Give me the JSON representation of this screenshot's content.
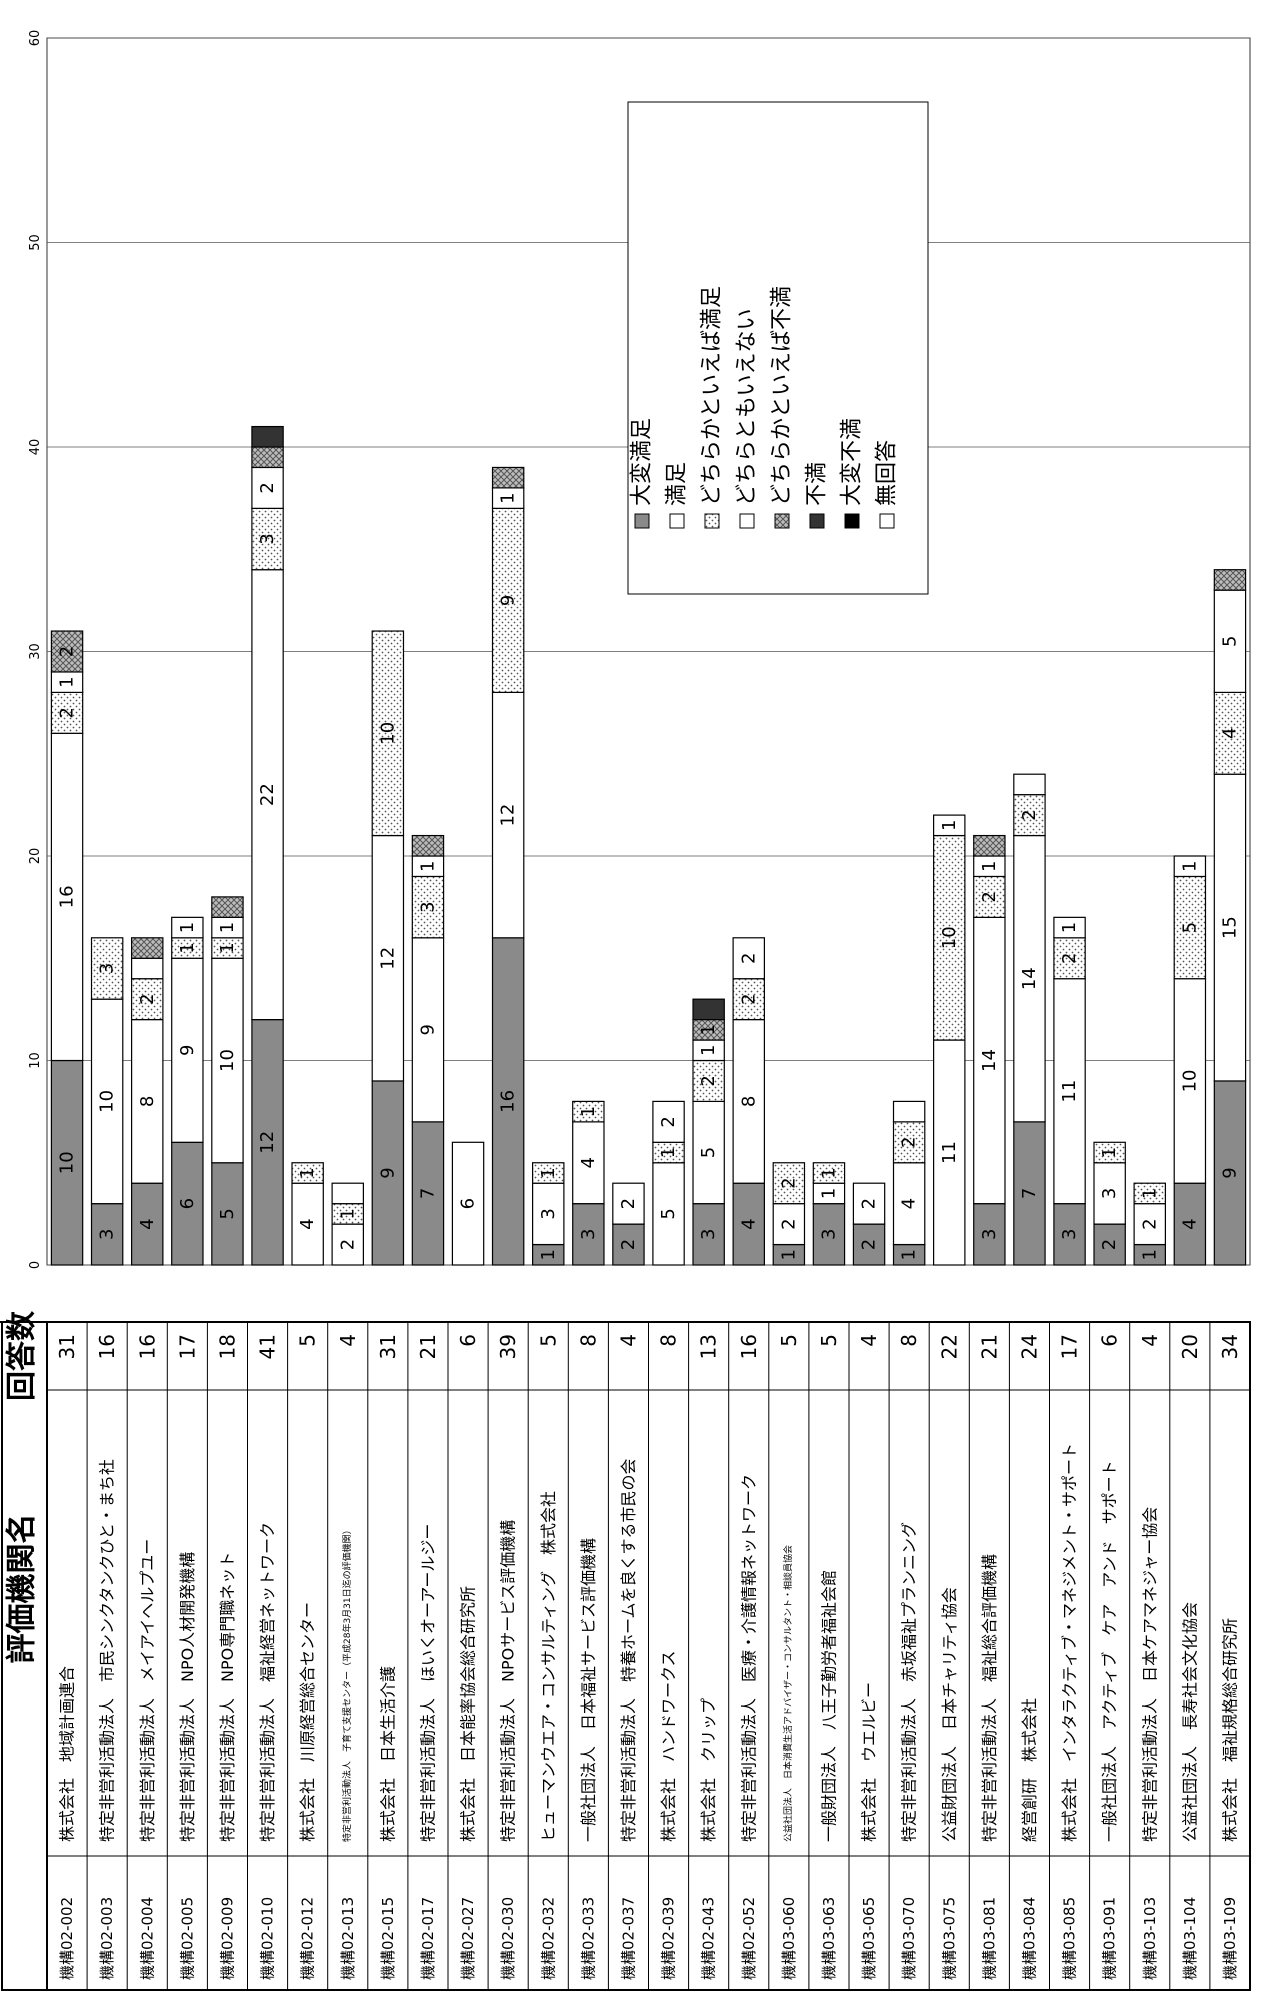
{
  "chart_data": {
    "type": "bar",
    "orientation": "stacked-horizontal (page rotated 90° counter-clockwise)",
    "xlim": [
      0,
      60
    ],
    "ticks": [
      0,
      10,
      20,
      30,
      40,
      50,
      60
    ],
    "grid": true,
    "legend_placement": "upper-middle",
    "table_headers": {
      "name": "評価機関名",
      "count": "回答数"
    },
    "legend": [
      {
        "key": "very_satisfied",
        "label": "大変満足",
        "color": "#8a8a8a"
      },
      {
        "key": "satisfied",
        "label": "満足",
        "color": "#ffffff"
      },
      {
        "key": "somewhat_satisfied",
        "label": "どちらかといえば満足",
        "color": "#ffffff"
      },
      {
        "key": "neutral",
        "label": "どちらともいえない",
        "color": "#ffffff"
      },
      {
        "key": "somewhat_dissatisfied",
        "label": "どちらかといえば不満",
        "color": "#bdbdbd"
      },
      {
        "key": "dissatisfied",
        "label": "不満",
        "color": "#333333"
      },
      {
        "key": "very_dissatisfied",
        "label": "大変不満",
        "color": "#000000"
      },
      {
        "key": "no_answer",
        "label": "無回答",
        "color": "#ffffff"
      }
    ],
    "rows": [
      {
        "code": "機構02-002",
        "name": "株式会社　地域計画連合",
        "total": 31,
        "segments": [
          [
            10,
            "10"
          ],
          [
            16,
            "16"
          ],
          [
            2,
            "2"
          ],
          [
            1,
            "1"
          ],
          [
            2,
            "2"
          ]
        ]
      },
      {
        "code": "機構02-003",
        "name": "特定非営利活動法人　市民シンクタンクひと・まち社",
        "total": 16,
        "segments": [
          [
            3,
            "3"
          ],
          [
            10,
            "10"
          ],
          [
            3,
            "3"
          ]
        ]
      },
      {
        "code": "機構02-004",
        "name": "特定非営利活動法人　メイアイヘルプユー",
        "total": 16,
        "segments": [
          [
            4,
            "4"
          ],
          [
            8,
            "8"
          ],
          [
            2,
            "2"
          ],
          [
            1,
            ""
          ],
          [
            1,
            ""
          ]
        ]
      },
      {
        "code": "機構02-005",
        "name": "特定非営利活動法人　NPO人材開発機構",
        "total": 17,
        "segments": [
          [
            6,
            "6"
          ],
          [
            9,
            "9"
          ],
          [
            1,
            "1"
          ],
          [
            1,
            "1"
          ]
        ]
      },
      {
        "code": "機構02-009",
        "name": "特定非営利活動法人　NPO専門職ネット",
        "total": 18,
        "segments": [
          [
            5,
            "5"
          ],
          [
            10,
            "10"
          ],
          [
            1,
            "1"
          ],
          [
            1,
            "1"
          ],
          [
            1,
            ""
          ]
        ]
      },
      {
        "code": "機構02-010",
        "name": "特定非営利活動法人　福祉経営ネットワーク",
        "total": 41,
        "segments": [
          [
            12,
            "12"
          ],
          [
            22,
            "22"
          ],
          [
            3,
            "3"
          ],
          [
            2,
            "2"
          ],
          [
            1,
            ""
          ],
          [
            1,
            ""
          ]
        ]
      },
      {
        "code": "機構02-012",
        "name": "株式会社　川原経営総合センター",
        "total": 5,
        "segments": [
          [
            0,
            ""
          ],
          [
            4,
            "4"
          ],
          [
            1,
            "1"
          ]
        ]
      },
      {
        "code": "機構02-013",
        "name": "特定非営利活動法人　子育て支援センター（平成28年3月31日迄の評価機関）",
        "small": true,
        "total": 4,
        "segments": [
          [
            0,
            ""
          ],
          [
            2,
            "2"
          ],
          [
            1,
            "1"
          ],
          [
            1,
            ""
          ]
        ]
      },
      {
        "code": "機構02-015",
        "name": "株式会社　日本生活介護",
        "total": 31,
        "segments": [
          [
            9,
            "9"
          ],
          [
            12,
            "12"
          ],
          [
            10,
            "10"
          ]
        ]
      },
      {
        "code": "機構02-017",
        "name": "特定非営利活動法人　ほいくオーアールジー",
        "total": 21,
        "segments": [
          [
            7,
            "7"
          ],
          [
            9,
            "9"
          ],
          [
            3,
            "3"
          ],
          [
            1,
            "1"
          ],
          [
            1,
            ""
          ]
        ]
      },
      {
        "code": "機構02-027",
        "name": "株式会社　日本能率協会総合研究所",
        "total": 6,
        "segments": [
          [
            0,
            ""
          ],
          [
            6,
            "6"
          ]
        ]
      },
      {
        "code": "機構02-030",
        "name": "特定非営利活動法人　NPOサービス評価機構",
        "total": 39,
        "segments": [
          [
            16,
            "16"
          ],
          [
            12,
            "12"
          ],
          [
            9,
            "9"
          ],
          [
            1,
            "1"
          ],
          [
            1,
            ""
          ]
        ]
      },
      {
        "code": "機構02-032",
        "name": "ヒューマンウエア・コンサルティング　株式会社",
        "total": 5,
        "segments": [
          [
            1,
            "1"
          ],
          [
            3,
            "3"
          ],
          [
            1,
            "1"
          ]
        ]
      },
      {
        "code": "機構02-033",
        "name": "一般社団法人　日本福祉サービス評価機構",
        "total": 8,
        "segments": [
          [
            3,
            "3"
          ],
          [
            4,
            "4"
          ],
          [
            1,
            "1"
          ]
        ]
      },
      {
        "code": "機構02-037",
        "name": "特定非営利活動法人　特養ホームを良くする市民の会",
        "total": 4,
        "segments": [
          [
            2,
            "2"
          ],
          [
            2,
            "2"
          ]
        ]
      },
      {
        "code": "機構02-039",
        "name": "株式会社　ハンドワークス",
        "total": 8,
        "segments": [
          [
            0,
            ""
          ],
          [
            5,
            "5"
          ],
          [
            1,
            "1"
          ],
          [
            2,
            "2"
          ]
        ]
      },
      {
        "code": "機構02-043",
        "name": "株式会社　クリップ",
        "total": 13,
        "segments": [
          [
            3,
            "3"
          ],
          [
            5,
            "5"
          ],
          [
            2,
            "2"
          ],
          [
            1,
            "1"
          ],
          [
            1,
            "1"
          ],
          [
            1,
            ""
          ]
        ]
      },
      {
        "code": "機構02-052",
        "name": "特定非営利活動法人　医療・介護情報ネットワーク",
        "total": 16,
        "segments": [
          [
            4,
            "4"
          ],
          [
            8,
            "8"
          ],
          [
            2,
            "2"
          ],
          [
            2,
            "2"
          ]
        ]
      },
      {
        "code": "機構03-060",
        "name": "公益社団法人　日本消費生活アドバイザー・コンサルタント・相談員協会",
        "small": true,
        "total": 5,
        "segments": [
          [
            1,
            "1"
          ],
          [
            2,
            "2"
          ],
          [
            2,
            "2"
          ]
        ]
      },
      {
        "code": "機構03-063",
        "name": "一般財団法人　八王子勤労者福祉会館",
        "total": 5,
        "segments": [
          [
            3,
            "3"
          ],
          [
            1,
            "1"
          ],
          [
            1,
            "1"
          ]
        ]
      },
      {
        "code": "機構03-065",
        "name": "株式会社　ウエルビー",
        "total": 4,
        "segments": [
          [
            2,
            "2"
          ],
          [
            2,
            "2"
          ]
        ]
      },
      {
        "code": "機構03-070",
        "name": "特定非営利活動法人　赤坂福祉プランニング",
        "total": 8,
        "segments": [
          [
            1,
            "1"
          ],
          [
            4,
            "4"
          ],
          [
            2,
            "2"
          ],
          [
            1,
            ""
          ]
        ]
      },
      {
        "code": "機構03-075",
        "name": "公益財団法人　日本チャリティ協会",
        "total": 22,
        "segments": [
          [
            0,
            ""
          ],
          [
            11,
            "11"
          ],
          [
            10,
            "10"
          ],
          [
            1,
            "1"
          ]
        ]
      },
      {
        "code": "機構03-081",
        "name": "特定非営利活動法人　福祉総合評価機構",
        "total": 21,
        "segments": [
          [
            3,
            "3"
          ],
          [
            14,
            "14"
          ],
          [
            2,
            "2"
          ],
          [
            1,
            "1"
          ],
          [
            1,
            ""
          ]
        ]
      },
      {
        "code": "機構03-084",
        "name": "経営創研　株式会社",
        "total": 24,
        "segments": [
          [
            7,
            "7"
          ],
          [
            14,
            "14"
          ],
          [
            2,
            "2"
          ],
          [
            1,
            ""
          ]
        ]
      },
      {
        "code": "機構03-085",
        "name": "株式会社　インタラクティブ・マネジメント・サポート",
        "total": 17,
        "segments": [
          [
            3,
            "3"
          ],
          [
            11,
            "11"
          ],
          [
            2,
            "2"
          ],
          [
            1,
            "1"
          ]
        ]
      },
      {
        "code": "機構03-091",
        "name": "一般社団法人　アクティブ　ケア　アンド　サポート",
        "total": 6,
        "segments": [
          [
            2,
            "2"
          ],
          [
            3,
            "3"
          ],
          [
            1,
            "1"
          ]
        ]
      },
      {
        "code": "機構03-103",
        "name": "特定非営利活動法人　日本ケアマネジャー協会",
        "total": 4,
        "segments": [
          [
            1,
            "1"
          ],
          [
            2,
            "2"
          ],
          [
            1,
            "1"
          ]
        ]
      },
      {
        "code": "機構03-104",
        "name": "公益社団法人　長寿社会文化協会",
        "total": 20,
        "segments": [
          [
            4,
            "4"
          ],
          [
            10,
            "10"
          ],
          [
            5,
            "5"
          ],
          [
            1,
            "1"
          ]
        ]
      },
      {
        "code": "機構03-109",
        "name": "株式会社　福祉規格総合研究所",
        "total": 34,
        "segments": [
          [
            9,
            "9"
          ],
          [
            15,
            "15"
          ],
          [
            4,
            "4"
          ],
          [
            5,
            "5"
          ],
          [
            1,
            ""
          ]
        ]
      }
    ]
  }
}
